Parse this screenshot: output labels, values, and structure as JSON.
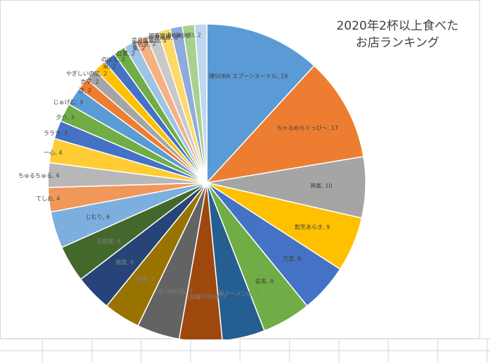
{
  "chart_data": {
    "type": "pie",
    "title_lines": [
      "2020年2杯以上食べた",
      "お店ランキング"
    ],
    "legend": "none",
    "slices": [
      {
        "label": "鶏SOBA スプーンヌードル",
        "value": 19,
        "color": "#5b9bd5"
      },
      {
        "label": "ちゃるめらぐっぴ〜",
        "value": 17,
        "color": "#ed7d31"
      },
      {
        "label": "神楽",
        "value": 10,
        "color": "#a5a5a5"
      },
      {
        "label": "割烹あらき",
        "value": 9,
        "color": "#ffc000"
      },
      {
        "label": "万里",
        "value": 8,
        "color": "#4472c4"
      },
      {
        "label": "安寿",
        "value": 8,
        "color": "#70ad47"
      },
      {
        "label": "三福屋ラーメン店",
        "value": 7,
        "color": "#255e91"
      },
      {
        "label": "自家製麺TERRA",
        "value": 7,
        "color": "#9e480e"
      },
      {
        "label": "DOG HOUSE",
        "value": 7,
        "color": "#636363"
      },
      {
        "label": "福座",
        "value": 6,
        "color": "#997300"
      },
      {
        "label": "麺屋",
        "value": 6,
        "color": "#264478"
      },
      {
        "label": "京助屋",
        "value": 6,
        "color": "#43682b"
      },
      {
        "label": "じむり",
        "value": 6,
        "color": "#7cafdd"
      },
      {
        "label": "てしお",
        "value": 4,
        "color": "#f1975a"
      },
      {
        "label": "ちゅるちゅる",
        "value": 4,
        "color": "#b7b7b7"
      },
      {
        "label": "一心",
        "value": 4,
        "color": "#ffcd33"
      },
      {
        "label": "ラララ",
        "value": 3,
        "color": "#4472c4"
      },
      {
        "label": "夕介",
        "value": 3,
        "color": "#70ad47"
      },
      {
        "label": "じゅげむ",
        "value": 3,
        "color": "#5b9bd5"
      },
      {
        "label": "渉",
        "value": 2,
        "color": "#ed7d31"
      },
      {
        "label": "吉平",
        "value": 2,
        "color": "#a5a5a5"
      },
      {
        "label": "やぎしいの店",
        "value": 2,
        "color": "#ffc000"
      },
      {
        "label": "南",
        "value": 2,
        "color": "#4472c4"
      },
      {
        "label": "のぼる",
        "value": 2,
        "color": "#70ad47"
      },
      {
        "label": "白鷺",
        "value": 2,
        "color": "#9dc3e6"
      },
      {
        "label": "集",
        "value": 2,
        "color": "#f4b183"
      },
      {
        "label": "金色堂",
        "value": 2,
        "color": "#c9c9c9"
      },
      {
        "label": "花月嵐富山",
        "value": 2,
        "color": "#ffd966"
      },
      {
        "label": "一世風靡",
        "value": 2,
        "color": "#8faadc"
      },
      {
        "label": "居酒屋はち丸",
        "value": 2,
        "color": "#a9d18e"
      },
      {
        "label": "BUSHIKEI",
        "value": 2,
        "color": "#bdd7ee"
      }
    ]
  }
}
